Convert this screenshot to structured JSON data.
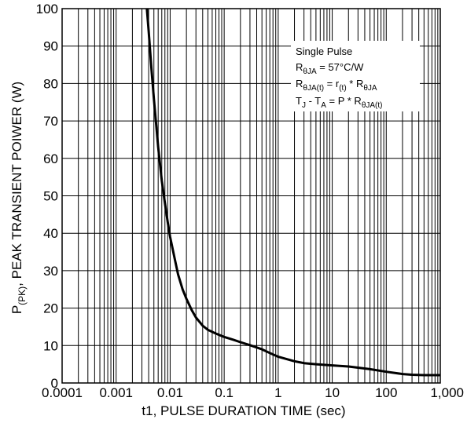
{
  "chart_data": {
    "type": "line",
    "x_scale": "log",
    "xlim": [
      0.0001,
      1000
    ],
    "ylim": [
      0,
      100
    ],
    "grid": true,
    "x_ticks": [
      0.0001,
      0.001,
      0.01,
      0.1,
      1,
      10,
      100,
      1000
    ],
    "x_tick_labels": [
      "0.0001",
      "0.001",
      "0.01",
      "0.1",
      "1",
      "10",
      "100",
      "1,000"
    ],
    "y_ticks": [
      0,
      10,
      20,
      30,
      40,
      50,
      60,
      70,
      80,
      90,
      100
    ],
    "y_tick_labels": [
      "0",
      "10",
      "20",
      "30",
      "40",
      "50",
      "60",
      "70",
      "80",
      "90",
      "100"
    ],
    "xlabel": "t1, PULSE DURATION TIME (sec)",
    "ylabel_main": "P",
    "ylabel_sub": "(PK)",
    "ylabel_rest": ", PEAK TRANSIENT POIWER (W)",
    "annotation": {
      "line1": "Single Pulse",
      "line2_main": "R",
      "line2_sub": "θJA",
      "line2_rest": " = 57°C/W",
      "line3_a": "R",
      "line3_a_sub": "θJA(t)",
      "line3_b": " = r",
      "line3_b_sub": "(t)",
      "line3_c": " * R",
      "line3_c_sub": "θJA",
      "line4_a": "T",
      "line4_a_sub": "J",
      "line4_b": " - T",
      "line4_b_sub": "A",
      "line4_c": " = P * R",
      "line4_c_sub": "θJA(t)"
    },
    "series": [
      {
        "color": "#000000",
        "x": [
          0.0037,
          0.004,
          0.0045,
          0.005,
          0.006,
          0.007,
          0.008,
          0.009,
          0.01,
          0.012,
          0.014,
          0.017,
          0.02,
          0.025,
          0.03,
          0.04,
          0.05,
          0.07,
          0.1,
          0.15,
          0.2,
          0.3,
          0.5,
          0.7,
          1,
          2,
          3,
          5,
          10,
          20,
          50,
          100,
          200,
          300,
          500,
          1000
        ],
        "y": [
          100,
          94,
          84,
          76,
          63,
          54,
          48,
          43,
          39,
          33.5,
          29,
          25,
          22.5,
          19.5,
          17.5,
          15.3,
          14.2,
          13.2,
          12.3,
          11.5,
          10.9,
          10.1,
          9,
          8,
          7,
          5.8,
          5.3,
          5,
          4.7,
          4.4,
          3.7,
          3,
          2.4,
          2.2,
          2.1,
          2.1
        ]
      }
    ]
  }
}
